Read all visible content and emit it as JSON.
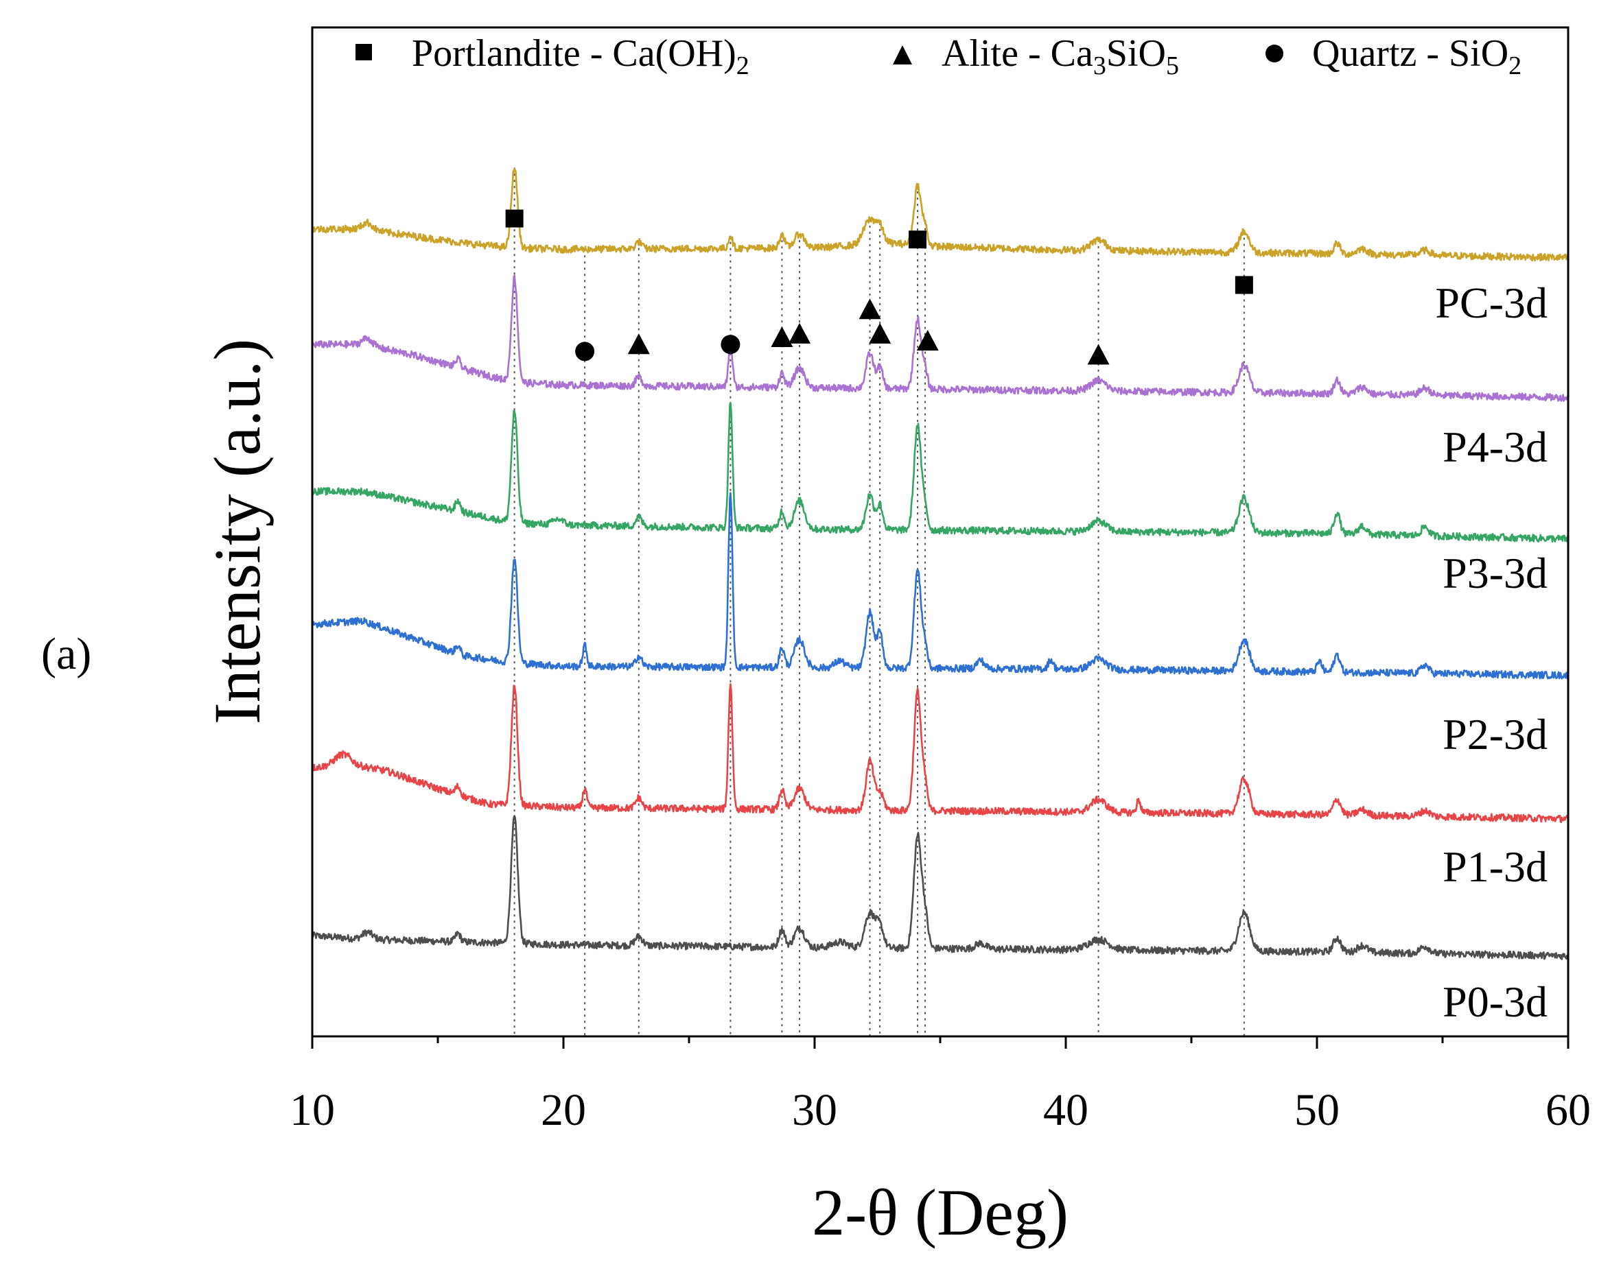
{
  "panel_label": "(a)",
  "chart_data": {
    "type": "line",
    "title": "",
    "xlabel": "2-θ (Deg)",
    "ylabel": "Intensity (a.u.)",
    "xlim": [
      10,
      60
    ],
    "x_ticks": [
      10,
      20,
      30,
      40,
      50,
      60
    ],
    "x_tick_labels": [
      "10",
      "20",
      "30",
      "40",
      "50",
      "60"
    ],
    "y_ticks": "none",
    "grid": false,
    "legend": {
      "placement": "top",
      "entries": [
        {
          "marker": "square",
          "text": "Portlandite - Ca(OH)",
          "subscript": "2"
        },
        {
          "marker": "triangle",
          "text": "Alite - Ca",
          "sub1": "3",
          "mid": "SiO",
          "sub2": "5"
        },
        {
          "marker": "circle",
          "text": "Quartz - SiO",
          "subscript": "2"
        }
      ]
    },
    "reference_lines_x": [
      18.05,
      20.85,
      23.0,
      26.65,
      28.7,
      29.4,
      32.2,
      32.6,
      34.1,
      34.4,
      41.3,
      47.1
    ],
    "phase_markers": [
      {
        "phase": "Portlandite",
        "marker": "square",
        "x": 18.05,
        "y": 107
      },
      {
        "phase": "Quartz",
        "marker": "circle",
        "x": 20.85,
        "y": 88
      },
      {
        "phase": "Alite",
        "marker": "triangle",
        "x": 23.0,
        "y": 89
      },
      {
        "phase": "Quartz",
        "marker": "circle",
        "x": 26.65,
        "y": 89
      },
      {
        "phase": "Alite",
        "marker": "triangle",
        "x": 28.7,
        "y": 90
      },
      {
        "phase": "Alite",
        "marker": "triangle",
        "x": 29.4,
        "y": 90.5
      },
      {
        "phase": "Alite",
        "marker": "triangle",
        "x": 32.2,
        "y": 94
      },
      {
        "phase": "Alite",
        "marker": "triangle",
        "x": 32.6,
        "y": 90.5
      },
      {
        "phase": "Portlandite",
        "marker": "square",
        "x": 34.1,
        "y": 104
      },
      {
        "phase": "Alite",
        "marker": "triangle",
        "x": 34.5,
        "y": 89.5
      },
      {
        "phase": "Alite",
        "marker": "triangle",
        "x": 41.3,
        "y": 87.5
      },
      {
        "phase": "Portlandite",
        "marker": "square",
        "x": 47.1,
        "y": 97.5
      }
    ],
    "series": [
      {
        "name": "P0-3d",
        "color": "#4d4d4d",
        "offset": 0,
        "baseline": [
          [
            10,
            4.5
          ],
          [
            12,
            4
          ],
          [
            20,
            3.2
          ],
          [
            30,
            2.8
          ],
          [
            40,
            2.5
          ],
          [
            50,
            2.2
          ],
          [
            60,
            1.6
          ]
        ],
        "peaks": [
          [
            12.2,
            1,
            0.2
          ],
          [
            15.8,
            1.2,
            0.1
          ],
          [
            18.05,
            18,
            0.13
          ],
          [
            23.0,
            1.3,
            0.15
          ],
          [
            28.7,
            2.5,
            0.12
          ],
          [
            29.4,
            2.8,
            0.2
          ],
          [
            31.0,
            0.8,
            0.3
          ],
          [
            32.2,
            5,
            0.2
          ],
          [
            32.6,
            3,
            0.15
          ],
          [
            34.1,
            16,
            0.15
          ],
          [
            34.4,
            4.5,
            0.12
          ],
          [
            36.6,
            0.8,
            0.2
          ],
          [
            41.3,
            1.5,
            0.4
          ],
          [
            47.1,
            5.5,
            0.22
          ],
          [
            50.8,
            2,
            0.15
          ],
          [
            51.8,
            1,
            0.2
          ],
          [
            54.3,
            1,
            0.2
          ]
        ]
      },
      {
        "name": "P1-3d",
        "color": "#e84346",
        "offset": 20,
        "baseline": [
          [
            10,
            8.5
          ],
          [
            11.5,
            9
          ],
          [
            13,
            8
          ],
          [
            15,
            5.5
          ],
          [
            17,
            3.3
          ],
          [
            20,
            2.8
          ],
          [
            30,
            2.5
          ],
          [
            40,
            2.2
          ],
          [
            50,
            1.8
          ],
          [
            60,
            1.2
          ]
        ],
        "peaks": [
          [
            11.2,
            1.5,
            0.3
          ],
          [
            15.8,
            1.2,
            0.1
          ],
          [
            18.05,
            17,
            0.12
          ],
          [
            20.85,
            2.8,
            0.08
          ],
          [
            23.0,
            1.5,
            0.12
          ],
          [
            26.65,
            18,
            0.08
          ],
          [
            28.7,
            2.8,
            0.1
          ],
          [
            29.4,
            3,
            0.2
          ],
          [
            32.2,
            7,
            0.15
          ],
          [
            32.6,
            2.5,
            0.15
          ],
          [
            34.1,
            17,
            0.14
          ],
          [
            34.4,
            3.5,
            0.1
          ],
          [
            41.3,
            1.8,
            0.3
          ],
          [
            42.9,
            1.8,
            0.08
          ],
          [
            47.1,
            5,
            0.2
          ],
          [
            50.8,
            2.2,
            0.15
          ],
          [
            51.8,
            0.8,
            0.2
          ],
          [
            54.3,
            0.8,
            0.2
          ]
        ]
      },
      {
        "name": "P2-3d",
        "color": "#2e6fd4",
        "offset": 40,
        "baseline": [
          [
            10,
            9
          ],
          [
            12,
            9.5
          ],
          [
            14,
            7
          ],
          [
            16,
            4.5
          ],
          [
            18,
            3.5
          ],
          [
            20,
            3
          ],
          [
            30,
            2.8
          ],
          [
            40,
            2.6
          ],
          [
            50,
            2.2
          ],
          [
            60,
            1.7
          ]
        ],
        "peaks": [
          [
            15.8,
            1.2,
            0.1
          ],
          [
            18.05,
            15,
            0.12
          ],
          [
            20.85,
            3,
            0.08
          ],
          [
            23.0,
            1.5,
            0.12
          ],
          [
            26.65,
            25,
            0.08
          ],
          [
            28.7,
            2.8,
            0.1
          ],
          [
            29.4,
            4,
            0.2
          ],
          [
            31.0,
            1,
            0.2
          ],
          [
            32.2,
            8,
            0.15
          ],
          [
            32.6,
            5,
            0.12
          ],
          [
            34.1,
            14,
            0.14
          ],
          [
            34.4,
            3,
            0.1
          ],
          [
            36.6,
            1.2,
            0.15
          ],
          [
            39.4,
            1.3,
            0.1
          ],
          [
            41.3,
            1.5,
            0.3
          ],
          [
            47.1,
            4.5,
            0.2
          ],
          [
            50.1,
            1.5,
            0.1
          ],
          [
            50.8,
            2.5,
            0.12
          ],
          [
            54.3,
            1.2,
            0.15
          ]
        ]
      },
      {
        "name": "P3-3d",
        "color": "#35a564",
        "offset": 60,
        "baseline": [
          [
            10,
            8
          ],
          [
            12,
            8
          ],
          [
            14,
            6.5
          ],
          [
            16,
            5
          ],
          [
            18,
            3.5
          ],
          [
            20,
            3.2
          ],
          [
            30,
            2.6
          ],
          [
            40,
            2.3
          ],
          [
            50,
            2
          ],
          [
            60,
            1.2
          ]
        ],
        "peaks": [
          [
            15.8,
            1.5,
            0.1
          ],
          [
            18.05,
            16,
            0.12
          ],
          [
            19.8,
            0.8,
            0.2
          ],
          [
            23.0,
            1.3,
            0.12
          ],
          [
            26.65,
            18,
            0.08
          ],
          [
            28.7,
            2.5,
            0.1
          ],
          [
            29.4,
            4,
            0.2
          ],
          [
            32.2,
            5,
            0.15
          ],
          [
            32.6,
            3.5,
            0.12
          ],
          [
            34.1,
            15,
            0.14
          ],
          [
            34.4,
            3,
            0.1
          ],
          [
            41.3,
            1.5,
            0.3
          ],
          [
            47.1,
            5,
            0.2
          ],
          [
            50.8,
            3,
            0.12
          ],
          [
            51.8,
            1.2,
            0.15
          ],
          [
            54.3,
            1.3,
            0.15
          ]
        ]
      },
      {
        "name": "P4-3d",
        "color": "#a972d2",
        "offset": 80,
        "baseline": [
          [
            10,
            9
          ],
          [
            12,
            9
          ],
          [
            14,
            7.5
          ],
          [
            16,
            5.5
          ],
          [
            18,
            3.6
          ],
          [
            20,
            3.2
          ],
          [
            30,
            2.8
          ],
          [
            40,
            2.4
          ],
          [
            50,
            2
          ],
          [
            60,
            1.4
          ]
        ],
        "peaks": [
          [
            12.2,
            1,
            0.2
          ],
          [
            15.8,
            1.2,
            0.1
          ],
          [
            18.05,
            15,
            0.12
          ],
          [
            23.0,
            1.3,
            0.12
          ],
          [
            26.65,
            6,
            0.08
          ],
          [
            28.7,
            2,
            0.1
          ],
          [
            29.4,
            2.8,
            0.2
          ],
          [
            32.2,
            5,
            0.15
          ],
          [
            32.6,
            3,
            0.12
          ],
          [
            34.1,
            10,
            0.14
          ],
          [
            34.4,
            2.5,
            0.1
          ],
          [
            41.3,
            1.5,
            0.3
          ],
          [
            47.1,
            4,
            0.2
          ],
          [
            50.8,
            2,
            0.12
          ],
          [
            51.8,
            1,
            0.2
          ],
          [
            54.3,
            1,
            0.2
          ]
        ]
      },
      {
        "name": "PC-3d",
        "color": "#c9a227",
        "offset": 100,
        "baseline": [
          [
            10,
            5.5
          ],
          [
            12,
            5.5
          ],
          [
            14,
            4.5
          ],
          [
            16,
            3.5
          ],
          [
            18,
            2.8
          ],
          [
            20,
            2.6
          ],
          [
            30,
            2.8
          ],
          [
            33,
            3.5
          ],
          [
            35,
            3
          ],
          [
            40,
            2.5
          ],
          [
            50,
            2
          ],
          [
            60,
            1.4
          ]
        ],
        "peaks": [
          [
            12.2,
            1,
            0.2
          ],
          [
            18.05,
            11.5,
            0.12
          ],
          [
            23.0,
            1,
            0.12
          ],
          [
            26.65,
            1.8,
            0.08
          ],
          [
            28.7,
            2,
            0.1
          ],
          [
            29.4,
            2,
            0.2
          ],
          [
            32.2,
            3.5,
            0.25
          ],
          [
            32.6,
            2,
            0.15
          ],
          [
            34.1,
            8.5,
            0.14
          ],
          [
            34.4,
            2.5,
            0.1
          ],
          [
            41.3,
            1.5,
            0.3
          ],
          [
            47.1,
            3,
            0.2
          ],
          [
            50.8,
            1.5,
            0.12
          ],
          [
            51.8,
            0.8,
            0.2
          ],
          [
            54.3,
            0.7,
            0.2
          ]
        ]
      }
    ]
  }
}
